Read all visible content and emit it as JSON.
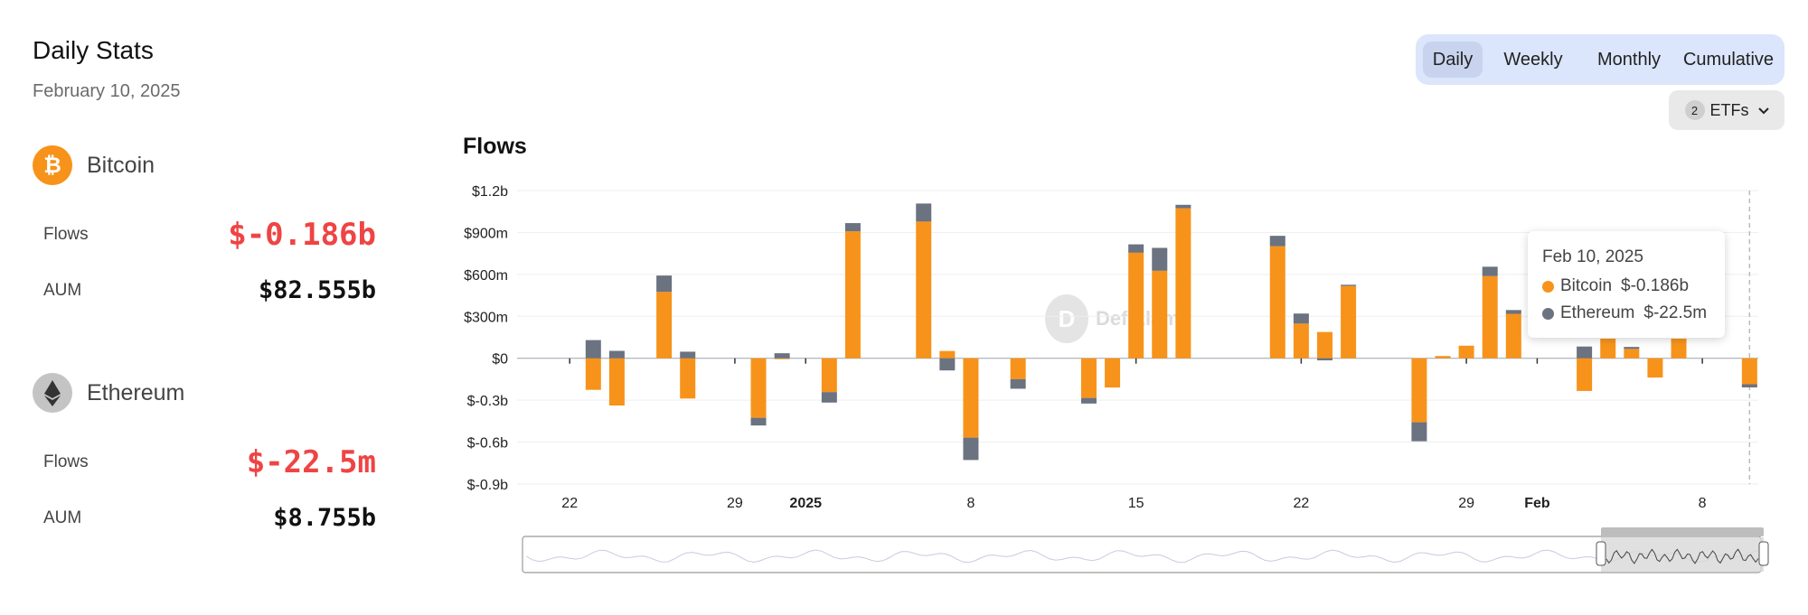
{
  "panel": {
    "title": "Daily Stats",
    "date": "February 10, 2025",
    "bitcoin": {
      "name": "Bitcoin",
      "flows_label": "Flows",
      "flows_value": "$-0.186b",
      "aum_label": "AUM",
      "aum_value": "$82.555b",
      "icon": "bitcoin-icon",
      "color": "#f7931a"
    },
    "ethereum": {
      "name": "Ethereum",
      "flows_label": "Flows",
      "flows_value": "$-22.5m",
      "aum_label": "AUM",
      "aum_value": "$8.755b",
      "icon": "ethereum-icon",
      "color": "#6b7280"
    }
  },
  "toggle": {
    "options": [
      "Daily",
      "Weekly",
      "Monthly",
      "Cumulative"
    ],
    "selected": "Daily"
  },
  "etf_filter": {
    "count": "2",
    "label": "ETFs",
    "icon": "chevron-down-icon"
  },
  "watermark": {
    "text": "DefiLlama"
  },
  "tooltip": {
    "date": "Feb 10, 2025",
    "rows": [
      {
        "name": "Bitcoin",
        "value": "$-0.186b",
        "color": "#f7931a"
      },
      {
        "name": "Ethereum",
        "value": "$-22.5m",
        "color": "#6b7280"
      }
    ]
  },
  "chart_data": {
    "type": "bar",
    "stacked": true,
    "title": "Flows",
    "unit": "USD millions",
    "ylim": [
      -900,
      1200
    ],
    "y_ticks": [
      -900,
      -600,
      -300,
      0,
      300,
      600,
      900,
      1200
    ],
    "y_tick_labels": [
      "$-0.9b",
      "$-0.6b",
      "$-0.3b",
      "$0",
      "$300m",
      "$600m",
      "$900m",
      "$1.2b"
    ],
    "x_start": "2024-12-20",
    "x_end": "2025-02-10",
    "x_ticks": [
      {
        "date": "2024-12-22",
        "label": "22",
        "bold": false
      },
      {
        "date": "2024-12-29",
        "label": "29",
        "bold": false
      },
      {
        "date": "2025-01-01",
        "label": "2025",
        "bold": true
      },
      {
        "date": "2025-01-08",
        "label": "8",
        "bold": false
      },
      {
        "date": "2025-01-15",
        "label": "15",
        "bold": false
      },
      {
        "date": "2025-01-22",
        "label": "22",
        "bold": false
      },
      {
        "date": "2025-01-29",
        "label": "29",
        "bold": false
      },
      {
        "date": "2025-02-01",
        "label": "Feb",
        "bold": true
      },
      {
        "date": "2025-02-08",
        "label": "8",
        "bold": false
      }
    ],
    "grid": true,
    "series": [
      {
        "name": "Bitcoin",
        "color": "#f7931a"
      },
      {
        "name": "Ethereum",
        "color": "#6b7280"
      }
    ],
    "points": [
      {
        "date": "2024-12-23",
        "btc": -226,
        "eth": 130
      },
      {
        "date": "2024-12-24",
        "btc": -338,
        "eth": 53
      },
      {
        "date": "2024-12-26",
        "btc": 475,
        "eth": 117
      },
      {
        "date": "2024-12-27",
        "btc": -288,
        "eth": 47
      },
      {
        "date": "2024-12-30",
        "btc": -426,
        "eth": -55
      },
      {
        "date": "2024-12-31",
        "btc": -5,
        "eth": 36
      },
      {
        "date": "2025-01-02",
        "btc": -242,
        "eth": -75
      },
      {
        "date": "2025-01-03",
        "btc": 908,
        "eth": 59
      },
      {
        "date": "2025-01-06",
        "btc": 978,
        "eth": 129
      },
      {
        "date": "2025-01-07",
        "btc": 52,
        "eth": -87
      },
      {
        "date": "2025-01-08",
        "btc": -568,
        "eth": -160
      },
      {
        "date": "2025-01-10",
        "btc": -150,
        "eth": -68
      },
      {
        "date": "2025-01-13",
        "btc": -284,
        "eth": -40
      },
      {
        "date": "2025-01-14",
        "btc": -209,
        "eth": 0
      },
      {
        "date": "2025-01-15",
        "btc": 755,
        "eth": 60
      },
      {
        "date": "2025-01-16",
        "btc": 626,
        "eth": 164
      },
      {
        "date": "2025-01-17",
        "btc": 1073,
        "eth": 25
      },
      {
        "date": "2025-01-21",
        "btc": 802,
        "eth": 74
      },
      {
        "date": "2025-01-22",
        "btc": 248,
        "eth": 72
      },
      {
        "date": "2025-01-23",
        "btc": 188,
        "eth": -15
      },
      {
        "date": "2025-01-24",
        "btc": 517,
        "eth": 9
      },
      {
        "date": "2025-01-27",
        "btc": -458,
        "eth": -136
      },
      {
        "date": "2025-01-28",
        "btc": 16,
        "eth": 0
      },
      {
        "date": "2025-01-29",
        "btc": 90,
        "eth": 0
      },
      {
        "date": "2025-01-30",
        "btc": 588,
        "eth": 67
      },
      {
        "date": "2025-01-31",
        "btc": 318,
        "eth": 27
      },
      {
        "date": "2025-02-03",
        "btc": -234,
        "eth": 84
      },
      {
        "date": "2025-02-04",
        "btc": 140,
        "eth": 0
      },
      {
        "date": "2025-02-05",
        "btc": 67,
        "eth": 14
      },
      {
        "date": "2025-02-06",
        "btc": -138,
        "eth": 0
      },
      {
        "date": "2025-02-07",
        "btc": 140,
        "eth": 0
      },
      {
        "date": "2025-02-10",
        "btc": -186,
        "eth": -22.5
      }
    ]
  }
}
